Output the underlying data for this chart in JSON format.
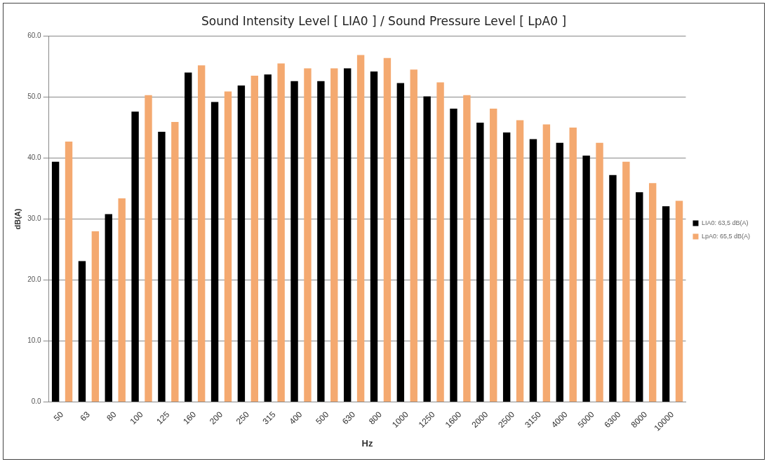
{
  "chart_data": {
    "type": "bar",
    "title": "Sound Intensity Level [ LIA0 ] / Sound Pressure Level [ LpA0 ]",
    "xlabel": "Hz",
    "ylabel": "dB(A)",
    "categories": [
      "50",
      "63",
      "80",
      "100",
      "125",
      "160",
      "200",
      "250",
      "315",
      "400",
      "500",
      "630",
      "800",
      "1000",
      "1250",
      "1600",
      "2000",
      "2500",
      "3150",
      "4000",
      "5000",
      "6300",
      "8000",
      "10000"
    ],
    "series": [
      {
        "name": "LIA0: 63,5 dB(A)",
        "color": "#000000",
        "values": [
          39.4,
          23.1,
          30.8,
          47.6,
          44.3,
          54.0,
          49.2,
          51.9,
          53.7,
          52.6,
          52.6,
          54.7,
          54.2,
          52.3,
          50.1,
          48.1,
          45.8,
          44.2,
          43.1,
          42.5,
          40.4,
          37.2,
          34.4,
          32.1
        ]
      },
      {
        "name": "LpA0: 65,5 dB(A)",
        "color": "#f4a970",
        "values": [
          42.7,
          28.0,
          33.4,
          50.3,
          45.9,
          55.2,
          50.9,
          53.5,
          55.5,
          54.7,
          54.7,
          56.9,
          56.4,
          54.5,
          52.4,
          50.3,
          48.1,
          46.2,
          45.5,
          45.0,
          42.5,
          39.4,
          35.9,
          33.0
        ]
      }
    ],
    "ylim": [
      0,
      60
    ],
    "yticks": [
      {
        "value": 0,
        "label": "0.0"
      },
      {
        "value": 10,
        "label": "10.0"
      },
      {
        "value": 20,
        "label": "20.0"
      },
      {
        "value": 30,
        "label": "30.0"
      },
      {
        "value": 40,
        "label": "40.0"
      },
      {
        "value": 50,
        "label": "50.0"
      },
      {
        "value": 60,
        "label": "60.0"
      }
    ],
    "grid": "y",
    "legend": "right"
  }
}
